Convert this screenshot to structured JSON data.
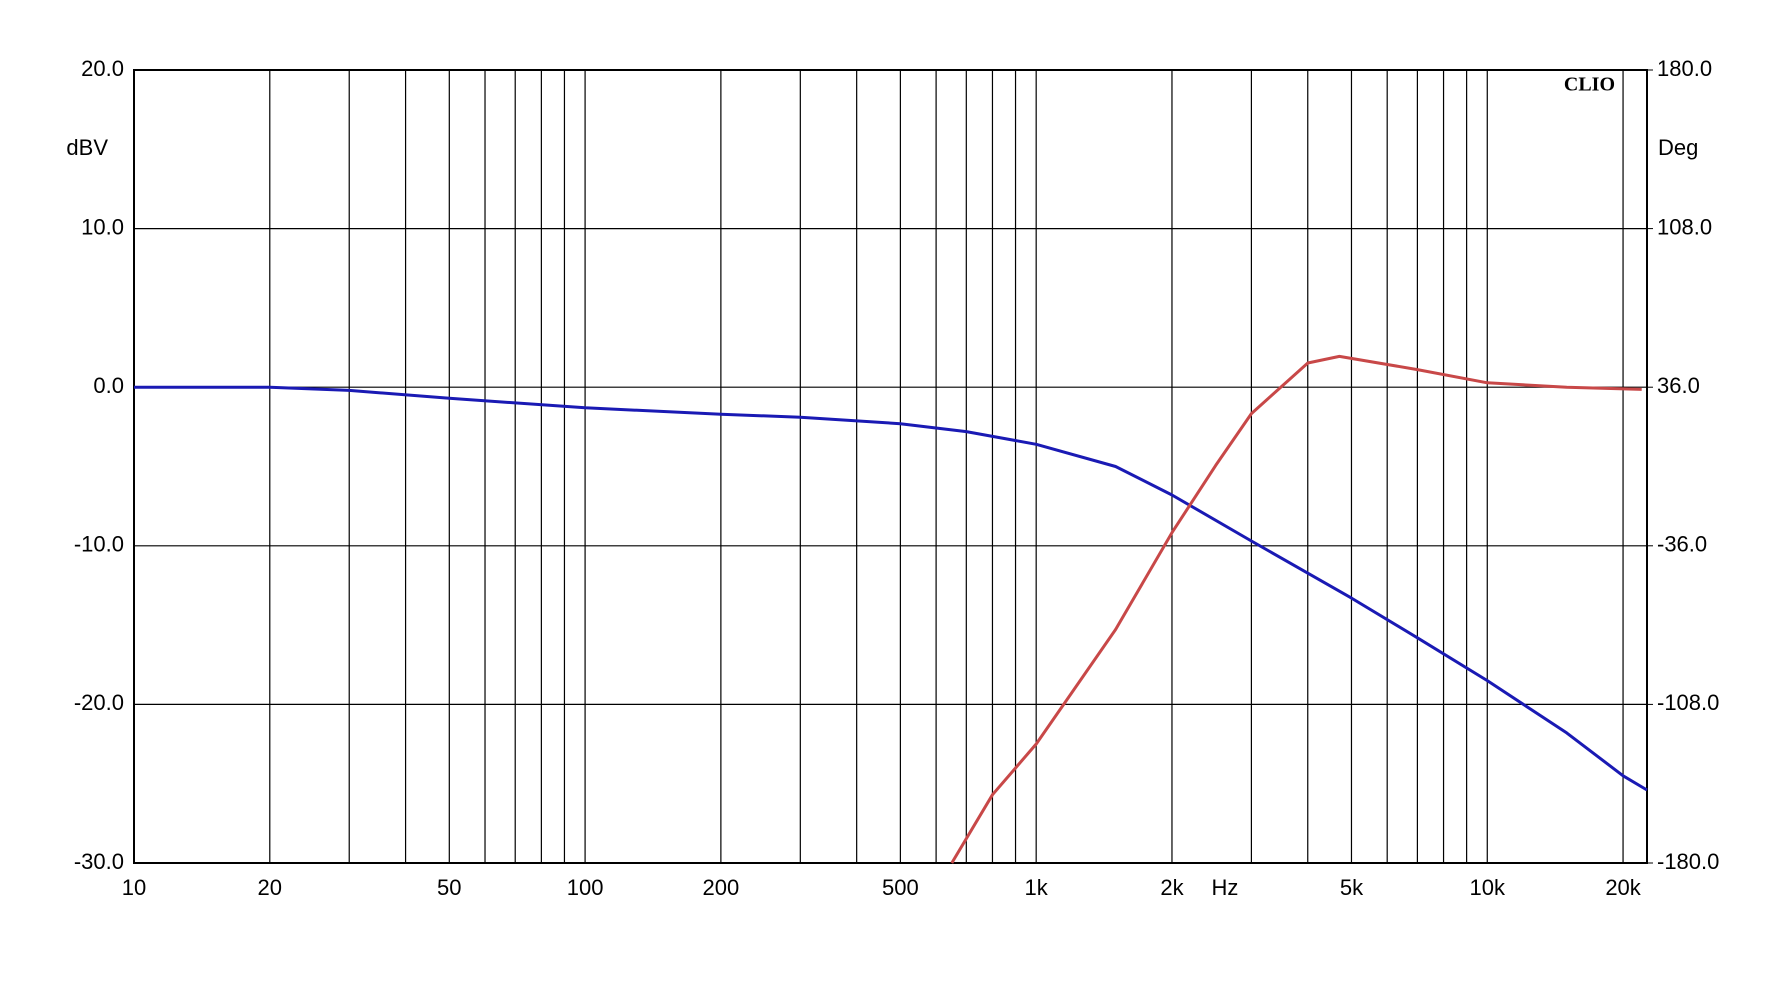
{
  "chart_data": {
    "type": "line",
    "brand": "CLIO",
    "y_label": "dBV",
    "y2_label": "Deg",
    "x_label": "Hz",
    "xscale": "log",
    "xlim": [
      10,
      22600
    ],
    "ylim": [
      -30,
      20
    ],
    "y2lim": [
      -180,
      180
    ],
    "grid": true,
    "xticks": [
      10,
      20,
      50,
      100,
      200,
      500,
      {
        "value": 1000,
        "label": "1k"
      },
      {
        "value": 2000,
        "label": "2k"
      },
      {
        "value": 5000,
        "label": "5k"
      },
      {
        "value": 10000,
        "label": "10k"
      },
      {
        "value": 20000,
        "label": "20k"
      }
    ],
    "xgrid": [
      20,
      30,
      40,
      50,
      60,
      70,
      80,
      90,
      100,
      200,
      300,
      400,
      500,
      600,
      700,
      800,
      900,
      1000,
      2000,
      3000,
      4000,
      5000,
      6000,
      7000,
      8000,
      9000,
      10000,
      20000
    ],
    "yticks": [
      {
        "value": -30,
        "label": "-30.0"
      },
      {
        "value": -20,
        "label": "-20.0"
      },
      {
        "value": -10,
        "label": "-10.0"
      },
      {
        "value": 0,
        "label": "0.0"
      },
      {
        "value": 10,
        "label": "10.0"
      },
      {
        "value": 20,
        "label": "20.0"
      }
    ],
    "y2ticks": [
      {
        "value": -180,
        "label": "-180.0"
      },
      {
        "value": -108,
        "label": "-108.0"
      },
      {
        "value": -36,
        "label": "-36.0"
      },
      {
        "value": 36,
        "label": "36.0"
      },
      {
        "value": 108,
        "label": "108.0"
      },
      {
        "value": 180,
        "label": "180.0"
      }
    ],
    "series": [
      {
        "color": "#1a1ab4",
        "x": [
          10,
          20,
          30,
          50,
          100,
          200,
          300,
          500,
          700,
          1000,
          1500,
          2000,
          3000,
          5000,
          7000,
          10000,
          15000,
          20000,
          22600
        ],
        "values": [
          0,
          0,
          -0.2,
          -0.7,
          -1.3,
          -1.7,
          -1.9,
          -2.3,
          -2.8,
          -3.6,
          -5.0,
          -6.8,
          -9.7,
          -13.3,
          -15.8,
          -18.5,
          -21.8,
          -24.5,
          -25.4
        ]
      },
      {
        "color": "#c84848",
        "axis": "y2",
        "x": [
          650,
          800,
          1000,
          1500,
          2000,
          2500,
          3000,
          4000,
          4700,
          7000,
          10000,
          15000,
          22000
        ],
        "values": [
          -180,
          -149,
          -126,
          -74,
          -30,
          0.5,
          24,
          47,
          50,
          44,
          38,
          36,
          35
        ]
      }
    ]
  }
}
